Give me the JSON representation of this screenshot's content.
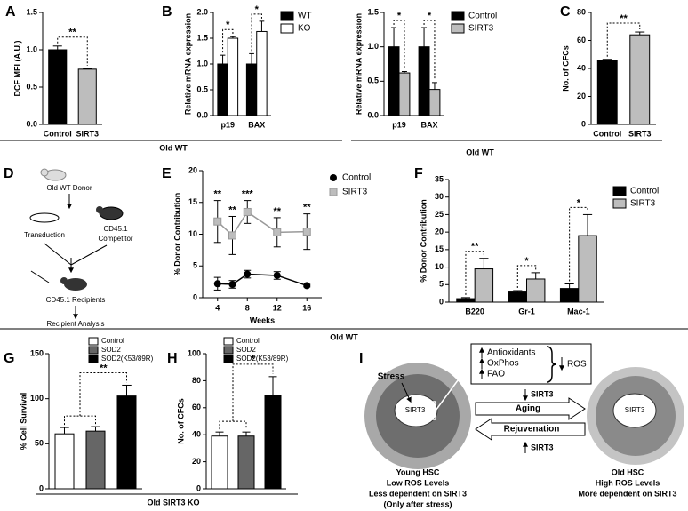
{
  "panel_labels": [
    "A",
    "B",
    "C",
    "D",
    "E",
    "F",
    "G",
    "H",
    "I"
  ],
  "group_labels": [
    "Old WT",
    "Old WT",
    "Old WT",
    "Old SIRT3 KO"
  ],
  "chart_data": [
    {
      "type": "bar",
      "ylabel": "DCF MFI (A.U.)",
      "categories": [
        "Control",
        "SIRT3"
      ],
      "values": [
        1.0,
        0.74
      ],
      "errors": [
        0.05,
        0.01
      ],
      "colors": [
        "#000000",
        "#bdbdbd"
      ],
      "ylim": [
        0,
        1.5
      ],
      "yticks": [
        {
          "value": 0,
          "label": "0.0"
        },
        {
          "value": 0.5,
          "label": "0.5"
        },
        {
          "value": 1,
          "label": "1.0"
        },
        {
          "value": 1.5,
          "label": "1.5"
        }
      ],
      "annotations": [
        "**"
      ]
    },
    {
      "type": "grouped_bar",
      "ylabel": "Relative mRNA expression",
      "categories": [
        "p19",
        "BAX"
      ],
      "series": [
        {
          "name": "WT",
          "color": "#000000",
          "values": [
            1.0,
            1.0
          ],
          "errors": [
            0.17,
            0.2
          ]
        },
        {
          "name": "KO",
          "color": "#ffffff",
          "values": [
            1.5,
            1.63
          ],
          "errors": [
            0.03,
            0.2
          ]
        }
      ],
      "ylim": [
        0,
        2
      ],
      "yticks": [
        {
          "value": 0,
          "label": "0.0"
        },
        {
          "value": 0.5,
          "label": "0.5"
        },
        {
          "value": 1,
          "label": "1.0"
        },
        {
          "value": 1.5,
          "label": "1.5"
        },
        {
          "value": 2,
          "label": "2.0"
        }
      ],
      "annotations": [
        "*",
        "*"
      ]
    },
    {
      "type": "grouped_bar",
      "ylabel": "Relative mRNA expression",
      "categories": [
        "p19",
        "BAX"
      ],
      "series": [
        {
          "name": "Control",
          "color": "#000000",
          "values": [
            1.0,
            1.0
          ],
          "errors": [
            0.28,
            0.28
          ]
        },
        {
          "name": "SIRT3",
          "color": "#bdbdbd",
          "values": [
            0.62,
            0.38
          ],
          "errors": [
            0.02,
            0.1
          ]
        }
      ],
      "ylim": [
        0,
        1.5
      ],
      "yticks": [
        {
          "value": 0,
          "label": "0.0"
        },
        {
          "value": 0.5,
          "label": "0.5"
        },
        {
          "value": 1,
          "label": "1.0"
        },
        {
          "value": 1.5,
          "label": "1.5"
        }
      ],
      "annotations": [
        "*",
        "*"
      ]
    },
    {
      "type": "bar",
      "ylabel": "No. of CFCs",
      "categories": [
        "Control",
        "SIRT3"
      ],
      "values": [
        46,
        64
      ],
      "errors": [
        0.5,
        2
      ],
      "colors": [
        "#000000",
        "#bdbdbd"
      ],
      "ylim": [
        0,
        80
      ],
      "yticks": [
        0,
        20,
        40,
        60,
        80
      ],
      "annotations": [
        "**"
      ]
    },
    {
      "type": "line",
      "ylabel": "% Donor Contribution",
      "xlabel": "Weeks",
      "x": [
        4,
        6,
        8,
        12,
        16
      ],
      "series": [
        {
          "name": "Control",
          "color": "#000000",
          "marker": "circle",
          "values": [
            2.2,
            2.1,
            3.7,
            3.5,
            1.9
          ],
          "errors": [
            1.0,
            0.6,
            0.6,
            0.6,
            0.2
          ]
        },
        {
          "name": "SIRT3",
          "color": "#999999",
          "marker": "square",
          "values": [
            12,
            9.8,
            13.5,
            10.3,
            10.4
          ],
          "errors": [
            3.3,
            3,
            1.8,
            2.3,
            2.8
          ]
        }
      ],
      "xlim": [
        2,
        18
      ],
      "xticks": [
        4,
        8,
        12,
        16
      ],
      "ylim": [
        0,
        20
      ],
      "yticks": [
        0,
        5,
        10,
        15,
        20
      ],
      "annotations": [
        "**",
        "**",
        "***",
        "**",
        "**"
      ]
    },
    {
      "type": "grouped_bar",
      "ylabel": "% Donor Contribution",
      "categories": [
        "B220",
        "Gr-1",
        "Mac-1"
      ],
      "series": [
        {
          "name": "Control",
          "color": "#000000",
          "values": [
            1.0,
            2.9,
            3.9
          ],
          "errors": [
            0.3,
            0.4,
            1.3
          ]
        },
        {
          "name": "SIRT3",
          "color": "#bdbdbd",
          "values": [
            9.5,
            6.6,
            19
          ],
          "errors": [
            3,
            1.8,
            6
          ]
        }
      ],
      "ylim": [
        0,
        35
      ],
      "yticks": [
        0,
        5,
        10,
        15,
        20,
        25,
        30,
        35
      ],
      "annotations": [
        "**",
        "*",
        "*"
      ]
    },
    {
      "type": "bar",
      "ylabel": "% Cell Survival",
      "categories": [
        "Control",
        "SOD2",
        "SOD2(K53/89R)"
      ],
      "values": [
        61,
        64,
        103
      ],
      "errors": [
        7,
        5,
        12
      ],
      "colors": [
        "#ffffff",
        "#666666",
        "#000000"
      ],
      "ylim": [
        0,
        150
      ],
      "yticks": [
        0,
        50,
        100,
        150
      ],
      "annotations": [
        "**"
      ],
      "legend": true
    },
    {
      "type": "bar",
      "ylabel": "No. of CFCs",
      "categories": [
        "Control",
        "SOD2",
        "SOD2(K53/89R)"
      ],
      "values": [
        39,
        39,
        69
      ],
      "errors": [
        3,
        3,
        14
      ],
      "colors": [
        "#ffffff",
        "#666666",
        "#000000"
      ],
      "ylim": [
        0,
        100
      ],
      "yticks": [
        0,
        20,
        40,
        60,
        80,
        100
      ],
      "annotations": [
        "*"
      ],
      "legend": true
    }
  ],
  "diagram_d": {
    "donor": "Old WT Donor",
    "transduction": "Transduction",
    "competitor": [
      "CD45.1",
      "Competitor"
    ],
    "recipients": "CD45.1 Recipients",
    "analysis": "Recipient Analysis"
  },
  "diagram_i": {
    "stress": "Stress",
    "nucleus": "SIRT3",
    "effects": [
      "Antioxidants",
      "OxPhos",
      "FAO"
    ],
    "ros": "ROS",
    "sirt3_down": "SIRT3",
    "aging": "Aging",
    "rejuvenation": "Rejuvenation",
    "sirt3_up": "SIRT3",
    "old_nucleus": "SIRT3",
    "young": [
      "Young HSC",
      "Low ROS Levels",
      "Less dependent on SIRT3",
      "(Only after stress)"
    ],
    "old": [
      "Old HSC",
      "High ROS Levels",
      "More dependent on SIRT3"
    ]
  }
}
